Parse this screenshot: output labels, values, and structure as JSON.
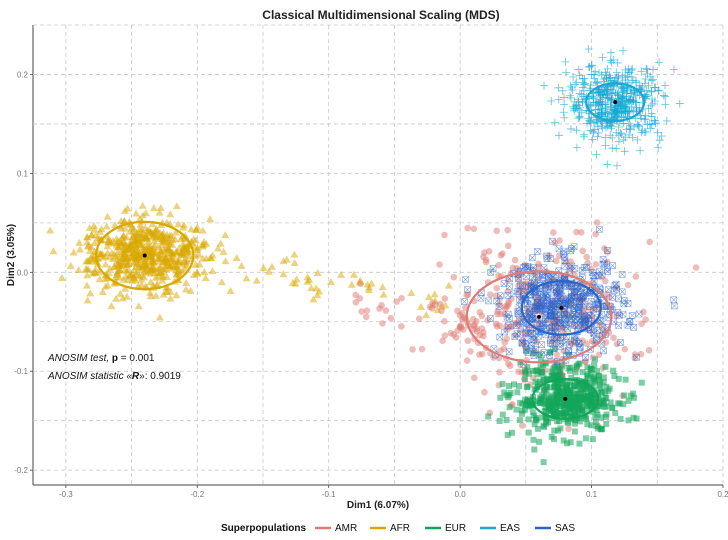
{
  "chart_data": {
    "type": "scatter",
    "title": "Classical Multidimensional Scaling (MDS)",
    "xlabel": "Dim1 (6.07%)",
    "ylabel": "Dim2 (3.05%)",
    "xlim": [
      -0.325,
      0.2
    ],
    "ylim": [
      -0.215,
      0.25
    ],
    "x_ticks": [
      -0.3,
      -0.2,
      -0.1,
      0.0,
      0.1,
      0.2
    ],
    "x_tick_labels": [
      "-0.3",
      "-0.2",
      "-0.1",
      "0.0",
      "0.1",
      "0.2"
    ],
    "y_ticks": [
      -0.2,
      -0.1,
      0.0,
      0.1,
      0.2
    ],
    "y_tick_labels": [
      "-0.2",
      "-0.1",
      "0.0",
      "0.1",
      "0.2"
    ],
    "grid": true,
    "legend_position": "bottom",
    "legend_title": "Superpopulations",
    "annotations": {
      "anosim_test_label": "ANOSIM test",
      "anosim_p_sep": ", ",
      "anosim_p_label": "p",
      "anosim_p_value": " = 0.001",
      "anosim_r_prefix": "ANOSIM statistic «",
      "anosim_r_label": "R",
      "anosim_r_value": "»: 0.9019"
    },
    "series": [
      {
        "name": "AMR",
        "color": "#E07B74",
        "marker": "circle",
        "n": 360,
        "center": [
          0.06,
          -0.045
        ],
        "spread": [
          0.034,
          0.04
        ],
        "ellipse": {
          "center": [
            0.06,
            -0.045
          ],
          "radii": [
            0.055,
            0.046
          ]
        }
      },
      {
        "name": "AFR",
        "color": "#D9A800",
        "marker": "triangle",
        "n": 640,
        "center": [
          -0.24,
          0.017
        ],
        "spread": [
          0.024,
          0.018
        ],
        "ellipse": {
          "center": [
            -0.24,
            0.017
          ],
          "radii": [
            0.037,
            0.034
          ]
        }
      },
      {
        "name": "EUR",
        "color": "#12A55A",
        "marker": "square",
        "n": 500,
        "center": [
          0.08,
          -0.128
        ],
        "spread": [
          0.02,
          0.017
        ],
        "ellipse": {
          "center": [
            0.08,
            -0.128
          ],
          "radii": [
            0.025,
            0.02
          ]
        }
      },
      {
        "name": "EAS",
        "color": "#17A8D4",
        "marker": "plus",
        "n": 500,
        "center": [
          0.118,
          0.172
        ],
        "spread": [
          0.018,
          0.019
        ],
        "ellipse": {
          "center": [
            0.118,
            0.172
          ],
          "radii": [
            0.022,
            0.019
          ]
        }
      },
      {
        "name": "SAS",
        "color": "#2A64C9",
        "marker": "xsquare",
        "n": 490,
        "center": [
          0.077,
          -0.036
        ],
        "spread": [
          0.024,
          0.024
        ],
        "ellipse": {
          "center": [
            0.077,
            -0.036
          ],
          "radii": [
            0.03,
            0.027
          ]
        }
      }
    ]
  }
}
